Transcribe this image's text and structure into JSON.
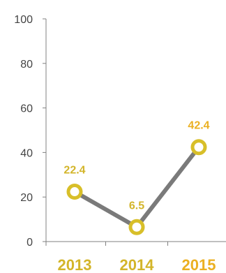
{
  "chart_data": {
    "type": "line",
    "categories": [
      "2013",
      "2014",
      "2015"
    ],
    "values": [
      22.4,
      6.5,
      42.4
    ],
    "data_labels": [
      "22.4",
      "6.5",
      "42.4"
    ],
    "yticks": [
      "0",
      "20",
      "40",
      "60",
      "80",
      "100"
    ],
    "ylim": [
      0,
      100
    ],
    "grid": false,
    "legend": "none",
    "colors": {
      "line": "#7a7a7a",
      "marker": "#d8bf29",
      "marker_fill": "#ffffff",
      "axis": "#808080",
      "label_primary": "#d3b52a",
      "label_accent": "#ebb022"
    },
    "category_label_colors": [
      "#d3b52a",
      "#d3b52a",
      "#ebb022"
    ],
    "data_label_colors": [
      "#d3b52a",
      "#d3b52a",
      "#ebb022"
    ]
  }
}
